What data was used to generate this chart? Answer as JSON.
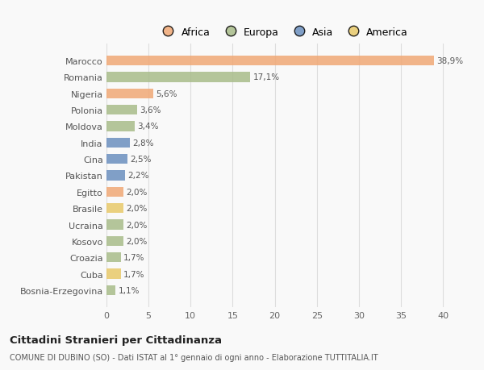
{
  "categories": [
    "Marocco",
    "Romania",
    "Nigeria",
    "Polonia",
    "Moldova",
    "India",
    "Cina",
    "Pakistan",
    "Egitto",
    "Brasile",
    "Ucraina",
    "Kosovo",
    "Croazia",
    "Cuba",
    "Bosnia-Erzegovina"
  ],
  "values": [
    38.9,
    17.1,
    5.6,
    3.6,
    3.4,
    2.8,
    2.5,
    2.2,
    2.0,
    2.0,
    2.0,
    2.0,
    1.7,
    1.7,
    1.1
  ],
  "labels": [
    "38,9%",
    "17,1%",
    "5,6%",
    "3,6%",
    "3,4%",
    "2,8%",
    "2,5%",
    "2,2%",
    "2,0%",
    "2,0%",
    "2,0%",
    "2,0%",
    "1,7%",
    "1,7%",
    "1,1%"
  ],
  "colors": [
    "#F0A875",
    "#A8BC8A",
    "#F0A875",
    "#A8BC8A",
    "#A8BC8A",
    "#6B8FBF",
    "#6B8FBF",
    "#6B8FBF",
    "#F0A875",
    "#E8C96A",
    "#A8BC8A",
    "#A8BC8A",
    "#A8BC8A",
    "#E8C96A",
    "#A8BC8A"
  ],
  "legend": [
    {
      "label": "Africa",
      "color": "#F0A875"
    },
    {
      "label": "Europa",
      "color": "#A8BC8A"
    },
    {
      "label": "Asia",
      "color": "#6B8FBF"
    },
    {
      "label": "America",
      "color": "#E8C96A"
    }
  ],
  "xlim": [
    0,
    42
  ],
  "xticks": [
    0,
    5,
    10,
    15,
    20,
    25,
    30,
    35,
    40
  ],
  "title": "Cittadini Stranieri per Cittadinanza",
  "subtitle": "COMUNE DI DUBINO (SO) - Dati ISTAT al 1° gennaio di ogni anno - Elaborazione TUTTITALIA.IT",
  "bg_color": "#f9f9f9",
  "grid_color": "#dddddd",
  "bar_height": 0.6
}
